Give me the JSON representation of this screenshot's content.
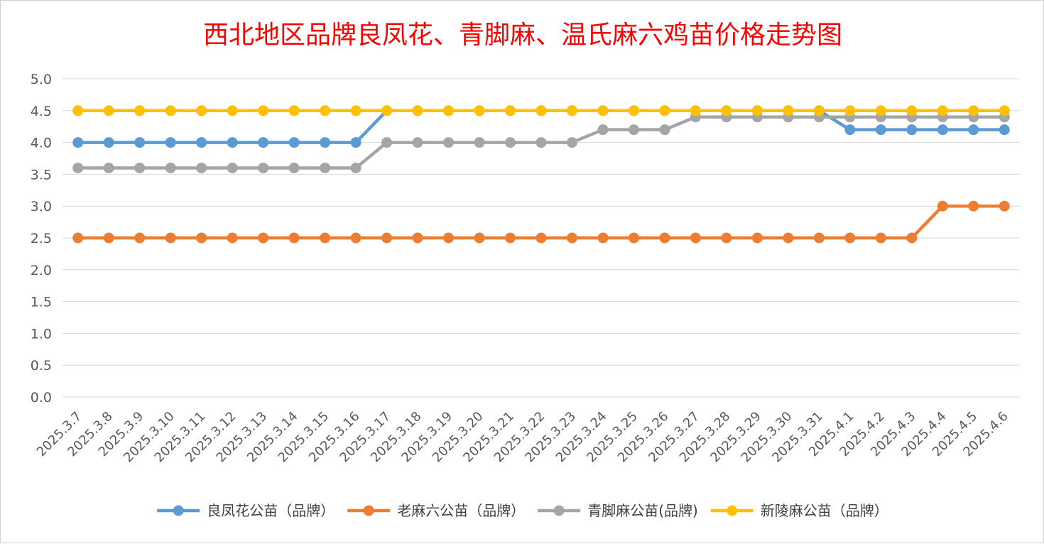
{
  "chart_data": {
    "type": "line",
    "title": "西北地区品牌良凤花、青脚麻、温氏麻六鸡苗价格走势图",
    "xlabel": "",
    "ylabel": "",
    "ylim": [
      0,
      5
    ],
    "yticks": [
      "0.0",
      "0.5",
      "1.0",
      "1.5",
      "2.0",
      "2.5",
      "3.0",
      "3.5",
      "4.0",
      "4.5",
      "5.0"
    ],
    "grid": true,
    "legend_position": "bottom",
    "categories": [
      "2025.3.7",
      "2025.3.8",
      "2025.3.9",
      "2025.3.10",
      "2025.3.11",
      "2025.3.12",
      "2025.3.13",
      "2025.3.14",
      "2025.3.15",
      "2025.3.16",
      "2025.3.17",
      "2025.3.18",
      "2025.3.19",
      "2025.3.20",
      "2025.3.21",
      "2025.3.22",
      "2025.3.23",
      "2025.3.24",
      "2025.3.25",
      "2025.3.26",
      "2025.3.27",
      "2025.3.28",
      "2025.3.29",
      "2025.3.30",
      "2025.3.31",
      "2025.4.1",
      "2025.4.2",
      "2025.4.3",
      "2025.4.4",
      "2025.4.5",
      "2025.4.6"
    ],
    "series": [
      {
        "name": "良凤花公苗（品牌）",
        "color": "#5b9bd5",
        "values": [
          4.0,
          4.0,
          4.0,
          4.0,
          4.0,
          4.0,
          4.0,
          4.0,
          4.0,
          4.0,
          4.5,
          4.5,
          4.5,
          4.5,
          4.5,
          4.5,
          4.5,
          4.5,
          4.5,
          4.5,
          4.5,
          4.5,
          4.5,
          4.5,
          4.5,
          4.2,
          4.2,
          4.2,
          4.2,
          4.2,
          4.2
        ]
      },
      {
        "name": "老麻六公苗（品牌）",
        "color": "#ed7d31",
        "values": [
          2.5,
          2.5,
          2.5,
          2.5,
          2.5,
          2.5,
          2.5,
          2.5,
          2.5,
          2.5,
          2.5,
          2.5,
          2.5,
          2.5,
          2.5,
          2.5,
          2.5,
          2.5,
          2.5,
          2.5,
          2.5,
          2.5,
          2.5,
          2.5,
          2.5,
          2.5,
          2.5,
          2.5,
          3.0,
          3.0,
          3.0
        ]
      },
      {
        "name": "青脚麻公苗(品牌)",
        "color": "#a5a5a5",
        "values": [
          3.6,
          3.6,
          3.6,
          3.6,
          3.6,
          3.6,
          3.6,
          3.6,
          3.6,
          3.6,
          4.0,
          4.0,
          4.0,
          4.0,
          4.0,
          4.0,
          4.0,
          4.2,
          4.2,
          4.2,
          4.4,
          4.4,
          4.4,
          4.4,
          4.4,
          4.4,
          4.4,
          4.4,
          4.4,
          4.4,
          4.4
        ]
      },
      {
        "name": "新陵麻公苗（品牌）",
        "color": "#ffc000",
        "values": [
          4.5,
          4.5,
          4.5,
          4.5,
          4.5,
          4.5,
          4.5,
          4.5,
          4.5,
          4.5,
          4.5,
          4.5,
          4.5,
          4.5,
          4.5,
          4.5,
          4.5,
          4.5,
          4.5,
          4.5,
          4.5,
          4.5,
          4.5,
          4.5,
          4.5,
          4.5,
          4.5,
          4.5,
          4.5,
          4.5,
          4.5
        ]
      }
    ]
  }
}
